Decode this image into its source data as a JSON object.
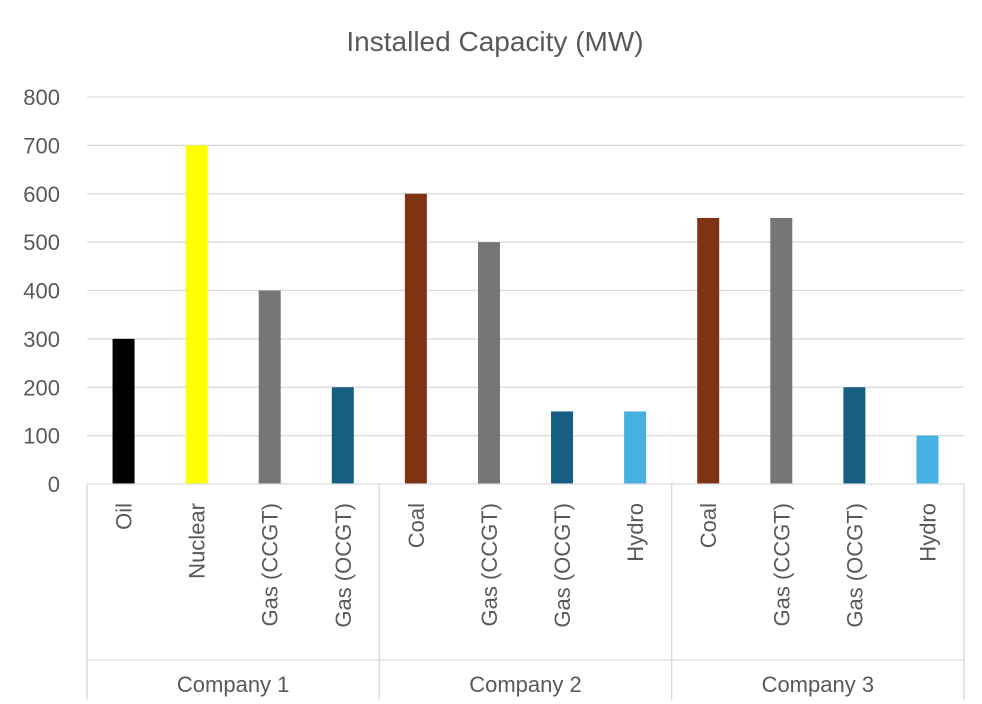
{
  "chart_data": {
    "type": "bar",
    "title": "Installed Capacity (MW)",
    "ylim": [
      0,
      800
    ],
    "yticks": [
      "0",
      "100",
      "200",
      "300",
      "400",
      "500",
      "600",
      "700",
      "800"
    ],
    "grid": true,
    "legend": "none",
    "groups": [
      {
        "name": "Company 1",
        "bars": [
          {
            "category": "Oil",
            "value": 300,
            "color": "#000000"
          },
          {
            "category": "Nuclear",
            "value": 700,
            "color": "#ffff00"
          },
          {
            "category": "Gas (CCGT)",
            "value": 400,
            "color": "#767676"
          },
          {
            "category": "Gas (OCGT)",
            "value": 200,
            "color": "#156082"
          }
        ]
      },
      {
        "name": "Company 2",
        "bars": [
          {
            "category": "Coal",
            "value": 600,
            "color": "#7f3313"
          },
          {
            "category": "Gas (CCGT)",
            "value": 500,
            "color": "#767676"
          },
          {
            "category": "Gas (OCGT)",
            "value": 150,
            "color": "#156082"
          },
          {
            "category": "Hydro",
            "value": 150,
            "color": "#45b0e1"
          }
        ]
      },
      {
        "name": "Company 3",
        "bars": [
          {
            "category": "Coal",
            "value": 550,
            "color": "#7f3313"
          },
          {
            "category": "Gas (CCGT)",
            "value": 550,
            "color": "#767676"
          },
          {
            "category": "Gas (OCGT)",
            "value": 200,
            "color": "#156082"
          },
          {
            "category": "Hydro",
            "value": 100,
            "color": "#45b0e1"
          }
        ]
      }
    ]
  }
}
